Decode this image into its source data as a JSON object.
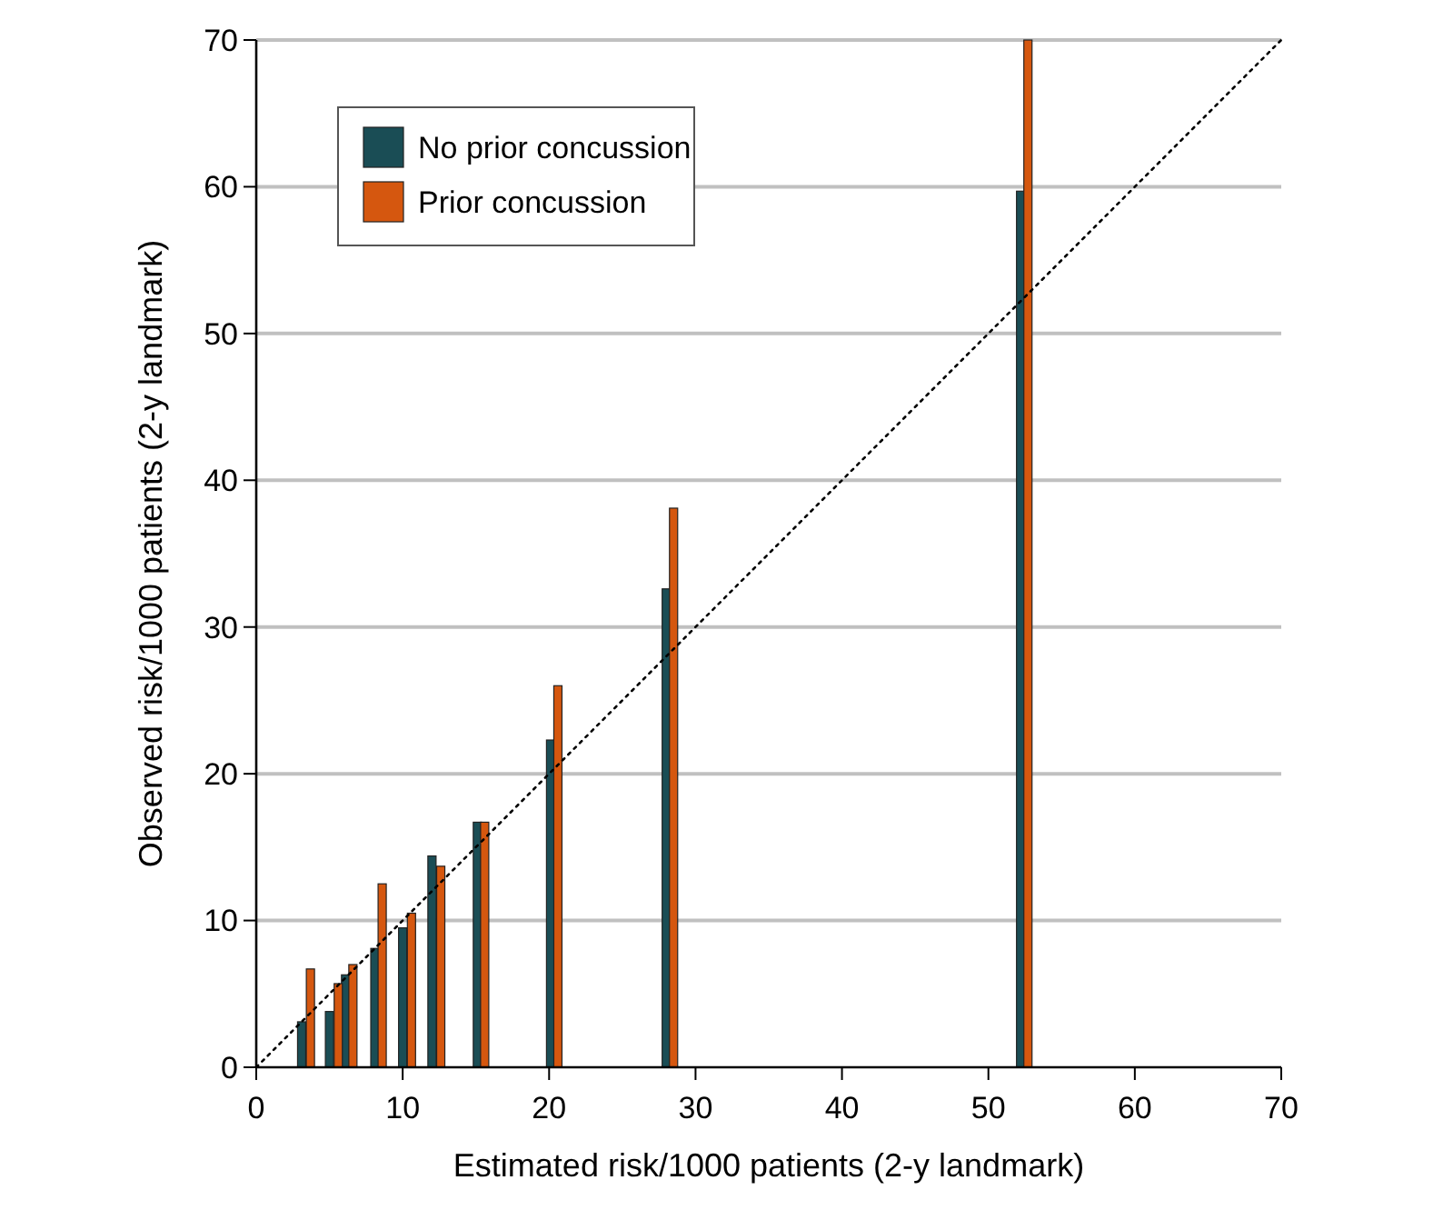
{
  "chart_data": {
    "type": "bar",
    "xlabel": "Estimated risk/1000 patients (2-y landmark)",
    "ylabel": "Observed risk/1000 patients (2-y landmark)",
    "xlim": [
      0,
      70
    ],
    "xticks": [
      0,
      10,
      20,
      30,
      40,
      50,
      60,
      70
    ],
    "ylim": [
      0,
      70
    ],
    "yticks": [
      0,
      10,
      20,
      30,
      40,
      50,
      60,
      70
    ],
    "grid": "y",
    "legend": "top left",
    "series": [
      {
        "name": "No prior concussion",
        "color": "#1a4d55",
        "x": [
          3.1,
          5.0,
          6.1,
          8.1,
          10.0,
          12.0,
          15.1,
          20.1,
          28.0,
          52.2
        ],
        "values": [
          3.1,
          3.8,
          6.3,
          8.1,
          9.5,
          14.4,
          16.7,
          22.3,
          32.6,
          59.7
        ]
      },
      {
        "name": "Prior concussion",
        "color": "#d5570f",
        "x": [
          3.7,
          5.6,
          6.6,
          8.6,
          10.6,
          12.6,
          15.6,
          20.6,
          28.5,
          52.7
        ],
        "values": [
          6.7,
          5.7,
          7.0,
          12.5,
          10.5,
          13.7,
          16.7,
          26.0,
          38.1,
          70
        ]
      },
      {
        "type": "line",
        "color": "#000000",
        "line_style": "dotted",
        "x": [
          0,
          70
        ],
        "values": [
          0,
          70
        ]
      }
    ]
  }
}
